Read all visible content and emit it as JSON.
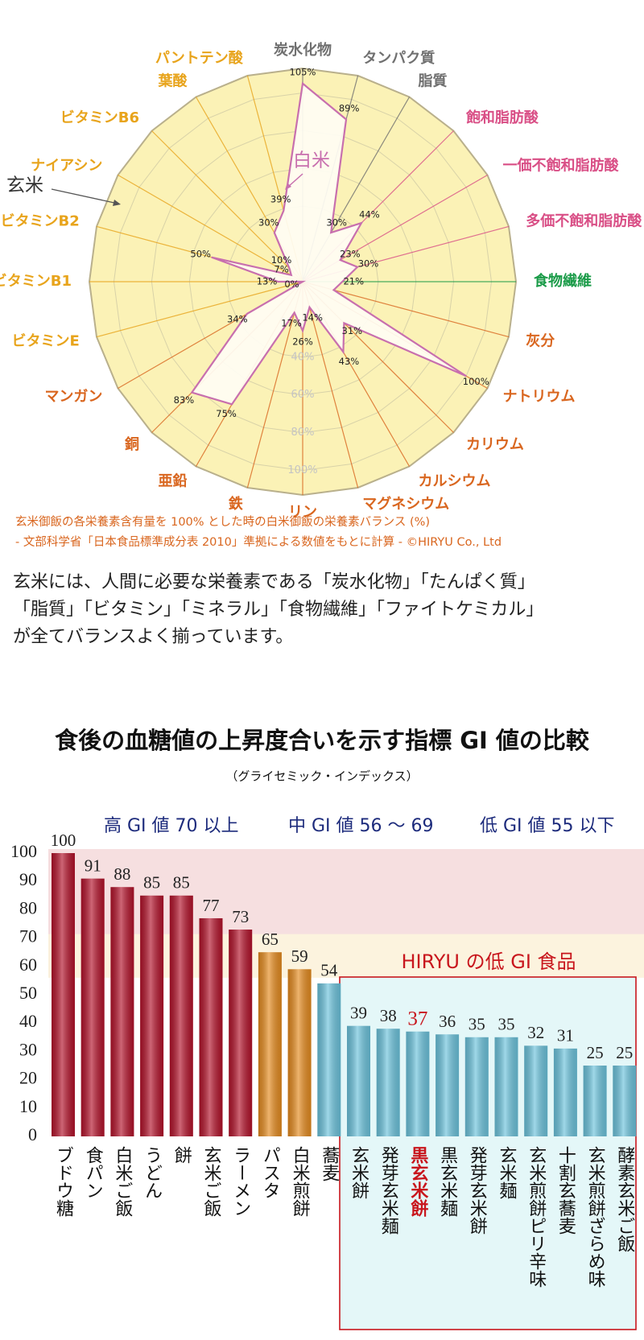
{
  "chart_data": [
    {
      "type": "radar",
      "categories": [
        "炭水化物",
        "タンパク質",
        "脂質",
        "飽和脂肪酸",
        "一価不飽和脂肪酸",
        "多価不飽和脂肪酸",
        "食物繊維",
        "灰分",
        "ナトリウム",
        "カリウム",
        "カルシウム",
        "マグネシウム",
        "リン",
        "鉄",
        "亜鉛",
        "銅",
        "マンガン",
        "ビタミンE",
        "ビタミンB1",
        "ビタミンB2",
        "ナイアシン",
        "ビタミンB6",
        "葉酸",
        "パントテン酸"
      ],
      "category_colors": [
        "#707070",
        "#707070",
        "#707070",
        "#d94f86",
        "#d94f86",
        "#d94f86",
        "#1a9b48",
        "#d9661f",
        "#d9661f",
        "#d9661f",
        "#d9661f",
        "#d9661f",
        "#d9661f",
        "#d9661f",
        "#d9661f",
        "#d9661f",
        "#d9661f",
        "#e8a41c",
        "#e8a41c",
        "#e8a41c",
        "#e8a41c",
        "#e8a41c",
        "#e8a41c",
        "#e8a41c"
      ],
      "series": [
        {
          "name": "白米",
          "color": "#c86fae",
          "values": [
            105,
            89,
            30,
            44,
            23,
            30,
            21,
            17,
            100,
            31,
            43,
            14,
            26,
            17,
            75,
            83,
            34,
            0,
            13,
            50,
            7,
            10,
            30,
            39
          ],
          "value_labels": [
            "105%",
            "89%",
            "30%",
            "44%",
            "23%",
            "30%",
            "21%",
            null,
            "100%",
            "31%",
            "43%",
            "14%",
            "26%",
            "17%",
            "75%",
            "83%",
            "34%",
            "0%",
            "13%",
            "50%",
            "7%",
            "10%",
            "30%",
            "39%"
          ]
        }
      ],
      "reference_label": "玄米",
      "rlim": [
        0,
        113
      ],
      "rticks": [
        {
          "value": 40,
          "label": "40%"
        },
        {
          "value": 60,
          "label": "60%"
        },
        {
          "value": 80,
          "label": "80%"
        },
        {
          "value": 100,
          "label": "100%"
        }
      ],
      "notes": [
        "玄米御飯の各栄養素含有量を 100% とした時の白米御飯の栄養素バランス (%)",
        "- 文部科学省「日本食品標準成分表 2010」準拠による数値をもとに計算 - ©HIRYU Co., Ltd"
      ]
    },
    {
      "type": "bar",
      "title": "食後の血糖値の上昇度合いを示す指標 GI 値の比較",
      "subtitle": "（グライセミック・インデックス）",
      "categories": [
        "ブドウ糖",
        "食パン",
        "白米ご飯",
        "うどん",
        "餅",
        "玄米ご飯",
        "ラーメン",
        "パスタ",
        "白米煎餅",
        "蕎麦",
        "玄米餅",
        "発芽玄米麺",
        "黒玄米餅",
        "黒玄米麺",
        "発芽玄米餅",
        "玄米麺",
        "玄米煎餅ピリ辛味",
        "十割玄蕎麦",
        "玄米煎餅ざらめ味",
        "酵素玄米ご飯"
      ],
      "values": [
        100,
        91,
        88,
        85,
        85,
        77,
        73,
        65,
        59,
        54,
        39,
        38,
        37,
        36,
        35,
        35,
        32,
        31,
        25,
        25
      ],
      "colors": [
        "#b3132b",
        "#b3132b",
        "#b3132b",
        "#b3132b",
        "#b3132b",
        "#b3132b",
        "#b3132b",
        "#e58b1f",
        "#e58b1f",
        "#6cc3dc",
        "#6cc3dc",
        "#6cc3dc",
        "#6cc3dc",
        "#6cc3dc",
        "#6cc3dc",
        "#6cc3dc",
        "#6cc3dc",
        "#6cc3dc",
        "#6cc3dc",
        "#6cc3dc"
      ],
      "highlight_index": 12,
      "highlight_color": "#c8161d",
      "ylim": [
        0,
        100
      ],
      "yticks": [
        0,
        10,
        20,
        30,
        40,
        50,
        60,
        70,
        80,
        90,
        100
      ],
      "zones": [
        {
          "label": "高 GI 値 70 以上",
          "from": 70,
          "to": 100,
          "color": "#f6dfe0"
        },
        {
          "label": "中 GI 値 56 ～ 69",
          "from": 56,
          "to": 70,
          "color": "#fcf3de"
        },
        {
          "label": "低 GI 値 55 以下",
          "from": 0,
          "to": 56,
          "color": "none"
        }
      ],
      "group_box": {
        "label": "HIRYU の低 GI 食品",
        "first_index": 10,
        "color": "#c8161d",
        "fill": "#e4f7f8"
      }
    }
  ],
  "body_text": [
    "玄米には、人間に必要な栄養素である「炭水化物」「たんぱく質」",
    "「脂質」「ビタミン」「ミネラル」「食物繊維」「ファイトケミカル」",
    "が全てバランスよく揃っています。"
  ]
}
